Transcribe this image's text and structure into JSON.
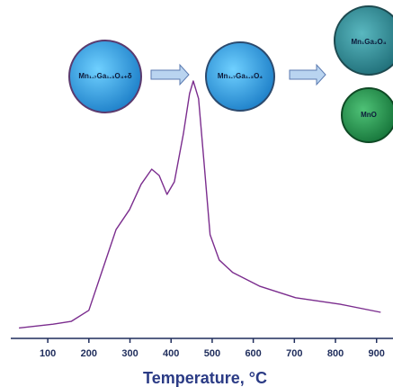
{
  "chart_data": {
    "type": "line",
    "x_label": "Temperature, °C",
    "annotations": [
      "Mn₁.₇Ga₁.₃O₄₊δ",
      "Mn₁.₇Ga₁.₃O₄",
      "Mn₁Ga₂O₄",
      "MnO"
    ],
    "x": [
      30,
      113,
      157,
      200,
      233,
      266,
      299,
      327,
      353,
      371,
      390,
      408,
      430,
      445,
      454,
      467,
      480,
      495,
      517,
      550,
      615,
      703,
      812,
      910
    ],
    "series": [
      {
        "color": "#7b2d8e",
        "values": [
          2,
          3.5,
          4.6,
          9,
          25,
          41,
          49,
          59,
          65,
          62.5,
          55,
          60,
          79,
          95,
          100,
          93,
          68,
          39,
          29,
          24,
          18.6,
          14,
          11.4,
          8.2
        ]
      }
    ],
    "xlim": [
      10,
      940
    ],
    "ylim": [
      0,
      100
    ],
    "xticks": [
      100,
      200,
      300,
      400,
      500,
      600,
      700,
      800,
      900
    ]
  }
}
